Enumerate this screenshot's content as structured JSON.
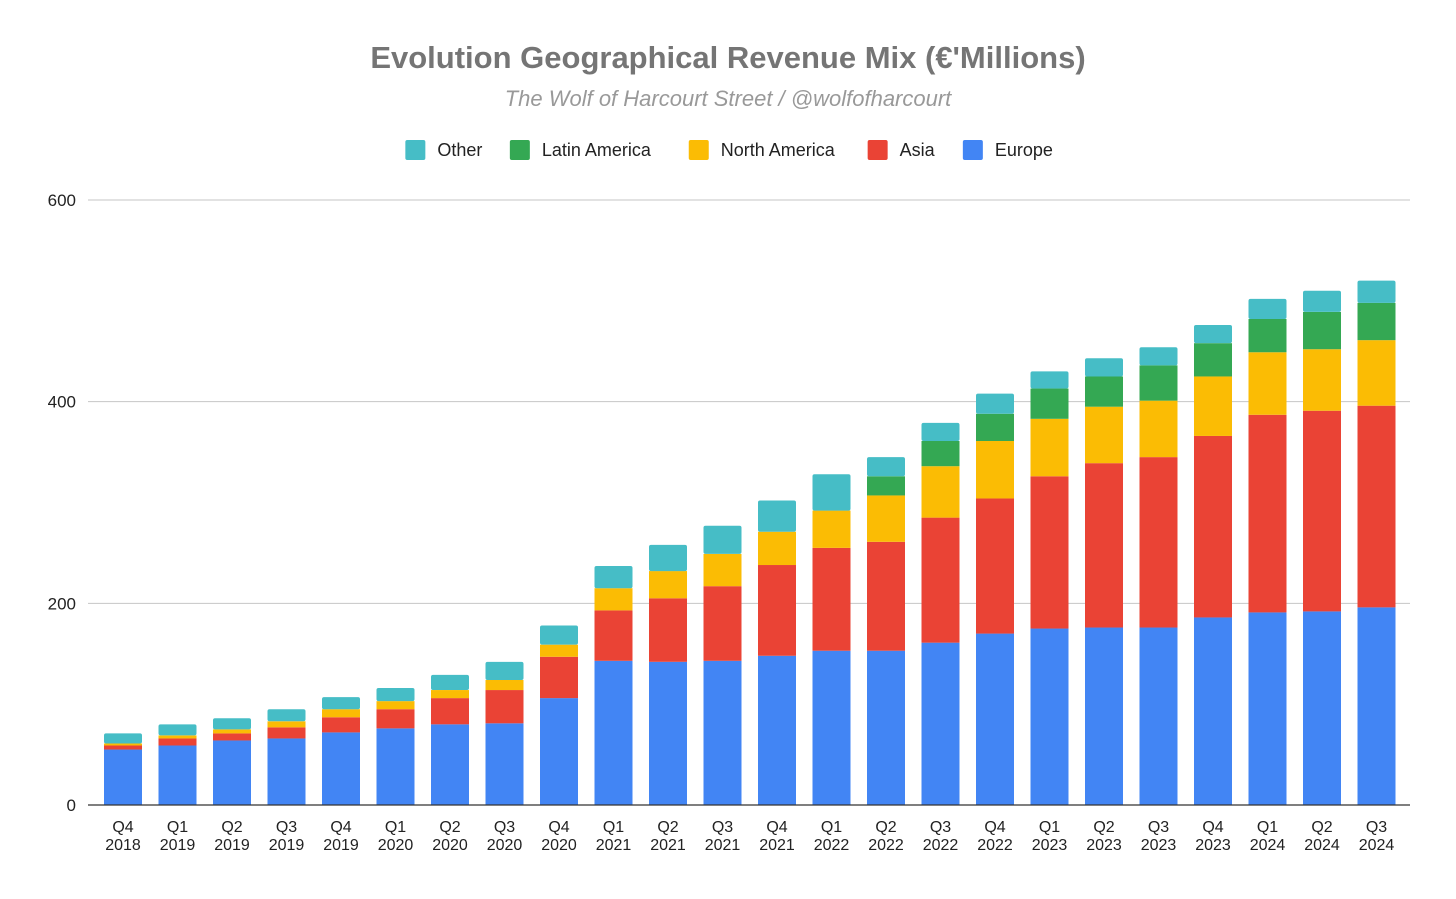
{
  "chart_data": {
    "type": "bar",
    "stacked": true,
    "title": "Evolution Geographical Revenue Mix (€'Millions)",
    "subtitle": "The Wolf of Harcourt Street / @wolfofharcourt",
    "legend_position": "top",
    "grid": true,
    "ylim": [
      0,
      600
    ],
    "yticks": [
      "0",
      "200",
      "400",
      "600"
    ],
    "categories": [
      [
        "Q4",
        "2018"
      ],
      [
        "Q1",
        "2019"
      ],
      [
        "Q2",
        "2019"
      ],
      [
        "Q3",
        "2019"
      ],
      [
        "Q4",
        "2019"
      ],
      [
        "Q1",
        "2020"
      ],
      [
        "Q2",
        "2020"
      ],
      [
        "Q3",
        "2020"
      ],
      [
        "Q4",
        "2020"
      ],
      [
        "Q1",
        "2021"
      ],
      [
        "Q2",
        "2021"
      ],
      [
        "Q3",
        "2021"
      ],
      [
        "Q4",
        "2021"
      ],
      [
        "Q1",
        "2022"
      ],
      [
        "Q2",
        "2022"
      ],
      [
        "Q3",
        "2022"
      ],
      [
        "Q4",
        "2022"
      ],
      [
        "Q1",
        "2023"
      ],
      [
        "Q2",
        "2023"
      ],
      [
        "Q3",
        "2023"
      ],
      [
        "Q4",
        "2023"
      ],
      [
        "Q1",
        "2024"
      ],
      [
        "Q2",
        "2024"
      ],
      [
        "Q3",
        "2024"
      ]
    ],
    "series": [
      {
        "name": "Europe",
        "color": "#4285f4",
        "values": [
          55,
          59,
          64,
          66,
          72,
          76,
          80,
          81,
          106,
          143,
          142,
          143,
          148,
          153,
          153,
          161,
          170,
          175,
          176,
          176,
          186,
          191,
          192,
          196
        ]
      },
      {
        "name": "Asia",
        "color": "#ea4335",
        "values": [
          4,
          7,
          7,
          11,
          15,
          19,
          26,
          33,
          41,
          50,
          63,
          74,
          90,
          102,
          108,
          124,
          134,
          151,
          163,
          169,
          180,
          196,
          199,
          200
        ]
      },
      {
        "name": "North America",
        "color": "#fbbc04",
        "values": [
          2,
          3,
          4,
          6,
          8,
          8,
          8,
          10,
          12,
          22,
          27,
          32,
          33,
          37,
          46,
          51,
          57,
          57,
          56,
          56,
          59,
          62,
          61,
          65
        ]
      },
      {
        "name": "Latin America",
        "color": "#34a853",
        "values": [
          0,
          0,
          0,
          0,
          0,
          0,
          0,
          0,
          0,
          0,
          0,
          0,
          0,
          0,
          19,
          25,
          27,
          30,
          30,
          35,
          33,
          33,
          37,
          37
        ]
      },
      {
        "name": "Other",
        "color": "#46bdc6",
        "values": [
          10,
          11,
          11,
          12,
          12,
          13,
          15,
          18,
          19,
          22,
          26,
          28,
          31,
          36,
          19,
          18,
          20,
          17,
          18,
          18,
          18,
          20,
          21,
          22
        ]
      }
    ],
    "legend_order": [
      "Other",
      "Latin America",
      "North America",
      "Asia",
      "Europe"
    ]
  }
}
